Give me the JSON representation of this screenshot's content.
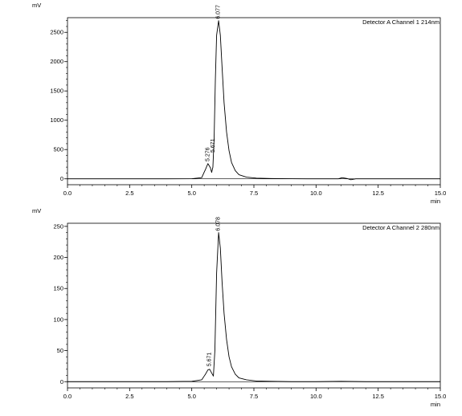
{
  "chart_data": [
    {
      "type": "line",
      "ylabel": "mV",
      "xlabel": "min",
      "legend": "Detector A Channel 1 214nm",
      "legend_position": "top-right",
      "xlim": [
        0.0,
        15.0
      ],
      "ylim": [
        -100,
        2750
      ],
      "x_ticks": [
        0.0,
        2.5,
        5.0,
        7.5,
        10.0,
        12.5,
        15.0
      ],
      "x_tick_labels": [
        "0.0",
        "2.5",
        "5.0",
        "7.5",
        "10.0",
        "12.5",
        "15.0"
      ],
      "y_ticks": [
        0,
        500,
        1000,
        1500,
        2000,
        2500
      ],
      "y_tick_labels": [
        "0",
        "500",
        "1000",
        "1500",
        "2000",
        "2500"
      ],
      "peaks": [
        {
          "label": "5.276",
          "x": 5.65,
          "y": 270
        },
        {
          "label": "5.671",
          "x": 5.87,
          "y": 420
        },
        {
          "label": "6.077",
          "x": 6.08,
          "y": 2700
        }
      ],
      "series": [
        {
          "x": [
            0,
            1,
            2,
            3,
            4,
            5,
            5.4,
            5.55,
            5.65,
            5.75,
            5.8,
            5.85,
            5.9,
            5.95,
            6.0,
            6.08,
            6.15,
            6.22,
            6.3,
            6.4,
            6.5,
            6.6,
            6.75,
            6.9,
            7.2,
            7.6,
            8.2,
            9,
            10,
            10.9,
            11.05,
            11.25,
            11.4,
            11.6,
            12,
            13,
            14,
            15
          ],
          "y": [
            0,
            0,
            0,
            0,
            0,
            2,
            20,
            160,
            260,
            190,
            110,
            200,
            700,
            1700,
            2450,
            2700,
            2450,
            1900,
            1300,
            800,
            480,
            280,
            140,
            70,
            30,
            12,
            5,
            2,
            0,
            0,
            20,
            5,
            -15,
            0,
            0,
            0,
            0,
            0
          ]
        }
      ]
    },
    {
      "type": "line",
      "ylabel": "mV",
      "xlabel": "min",
      "legend": "Detector A Channel 2 280nm",
      "legend_position": "top-right",
      "xlim": [
        0.0,
        15.0
      ],
      "ylim": [
        -10,
        255
      ],
      "x_ticks": [
        0.0,
        2.5,
        5.0,
        7.5,
        10.0,
        12.5,
        15.0
      ],
      "x_tick_labels": [
        "0.0",
        "2.5",
        "5.0",
        "7.5",
        "10.0",
        "12.5",
        "15.0"
      ],
      "y_ticks": [
        0,
        50,
        100,
        150,
        200,
        250
      ],
      "y_tick_labels": [
        "0",
        "50",
        "100",
        "150",
        "200",
        "250"
      ],
      "peaks": [
        {
          "label": "5.671",
          "x": 5.72,
          "y": 22
        },
        {
          "label": "6.078",
          "x": 6.08,
          "y": 240
        }
      ],
      "series": [
        {
          "x": [
            0,
            1,
            2,
            3,
            4,
            5,
            5.4,
            5.55,
            5.65,
            5.72,
            5.8,
            5.87,
            5.93,
            6.0,
            6.08,
            6.15,
            6.22,
            6.3,
            6.4,
            6.5,
            6.6,
            6.75,
            6.9,
            7.2,
            7.6,
            8.2,
            9,
            10,
            11,
            12,
            13,
            14,
            15
          ],
          "y": [
            0,
            0,
            0,
            0,
            0,
            0.5,
            3,
            12,
            19,
            20,
            14,
            9,
            50,
            175,
            240,
            215,
            160,
            110,
            68,
            40,
            24,
            12,
            6,
            3,
            1,
            0.5,
            0,
            0,
            0.5,
            0,
            0,
            0,
            0
          ]
        }
      ]
    }
  ]
}
